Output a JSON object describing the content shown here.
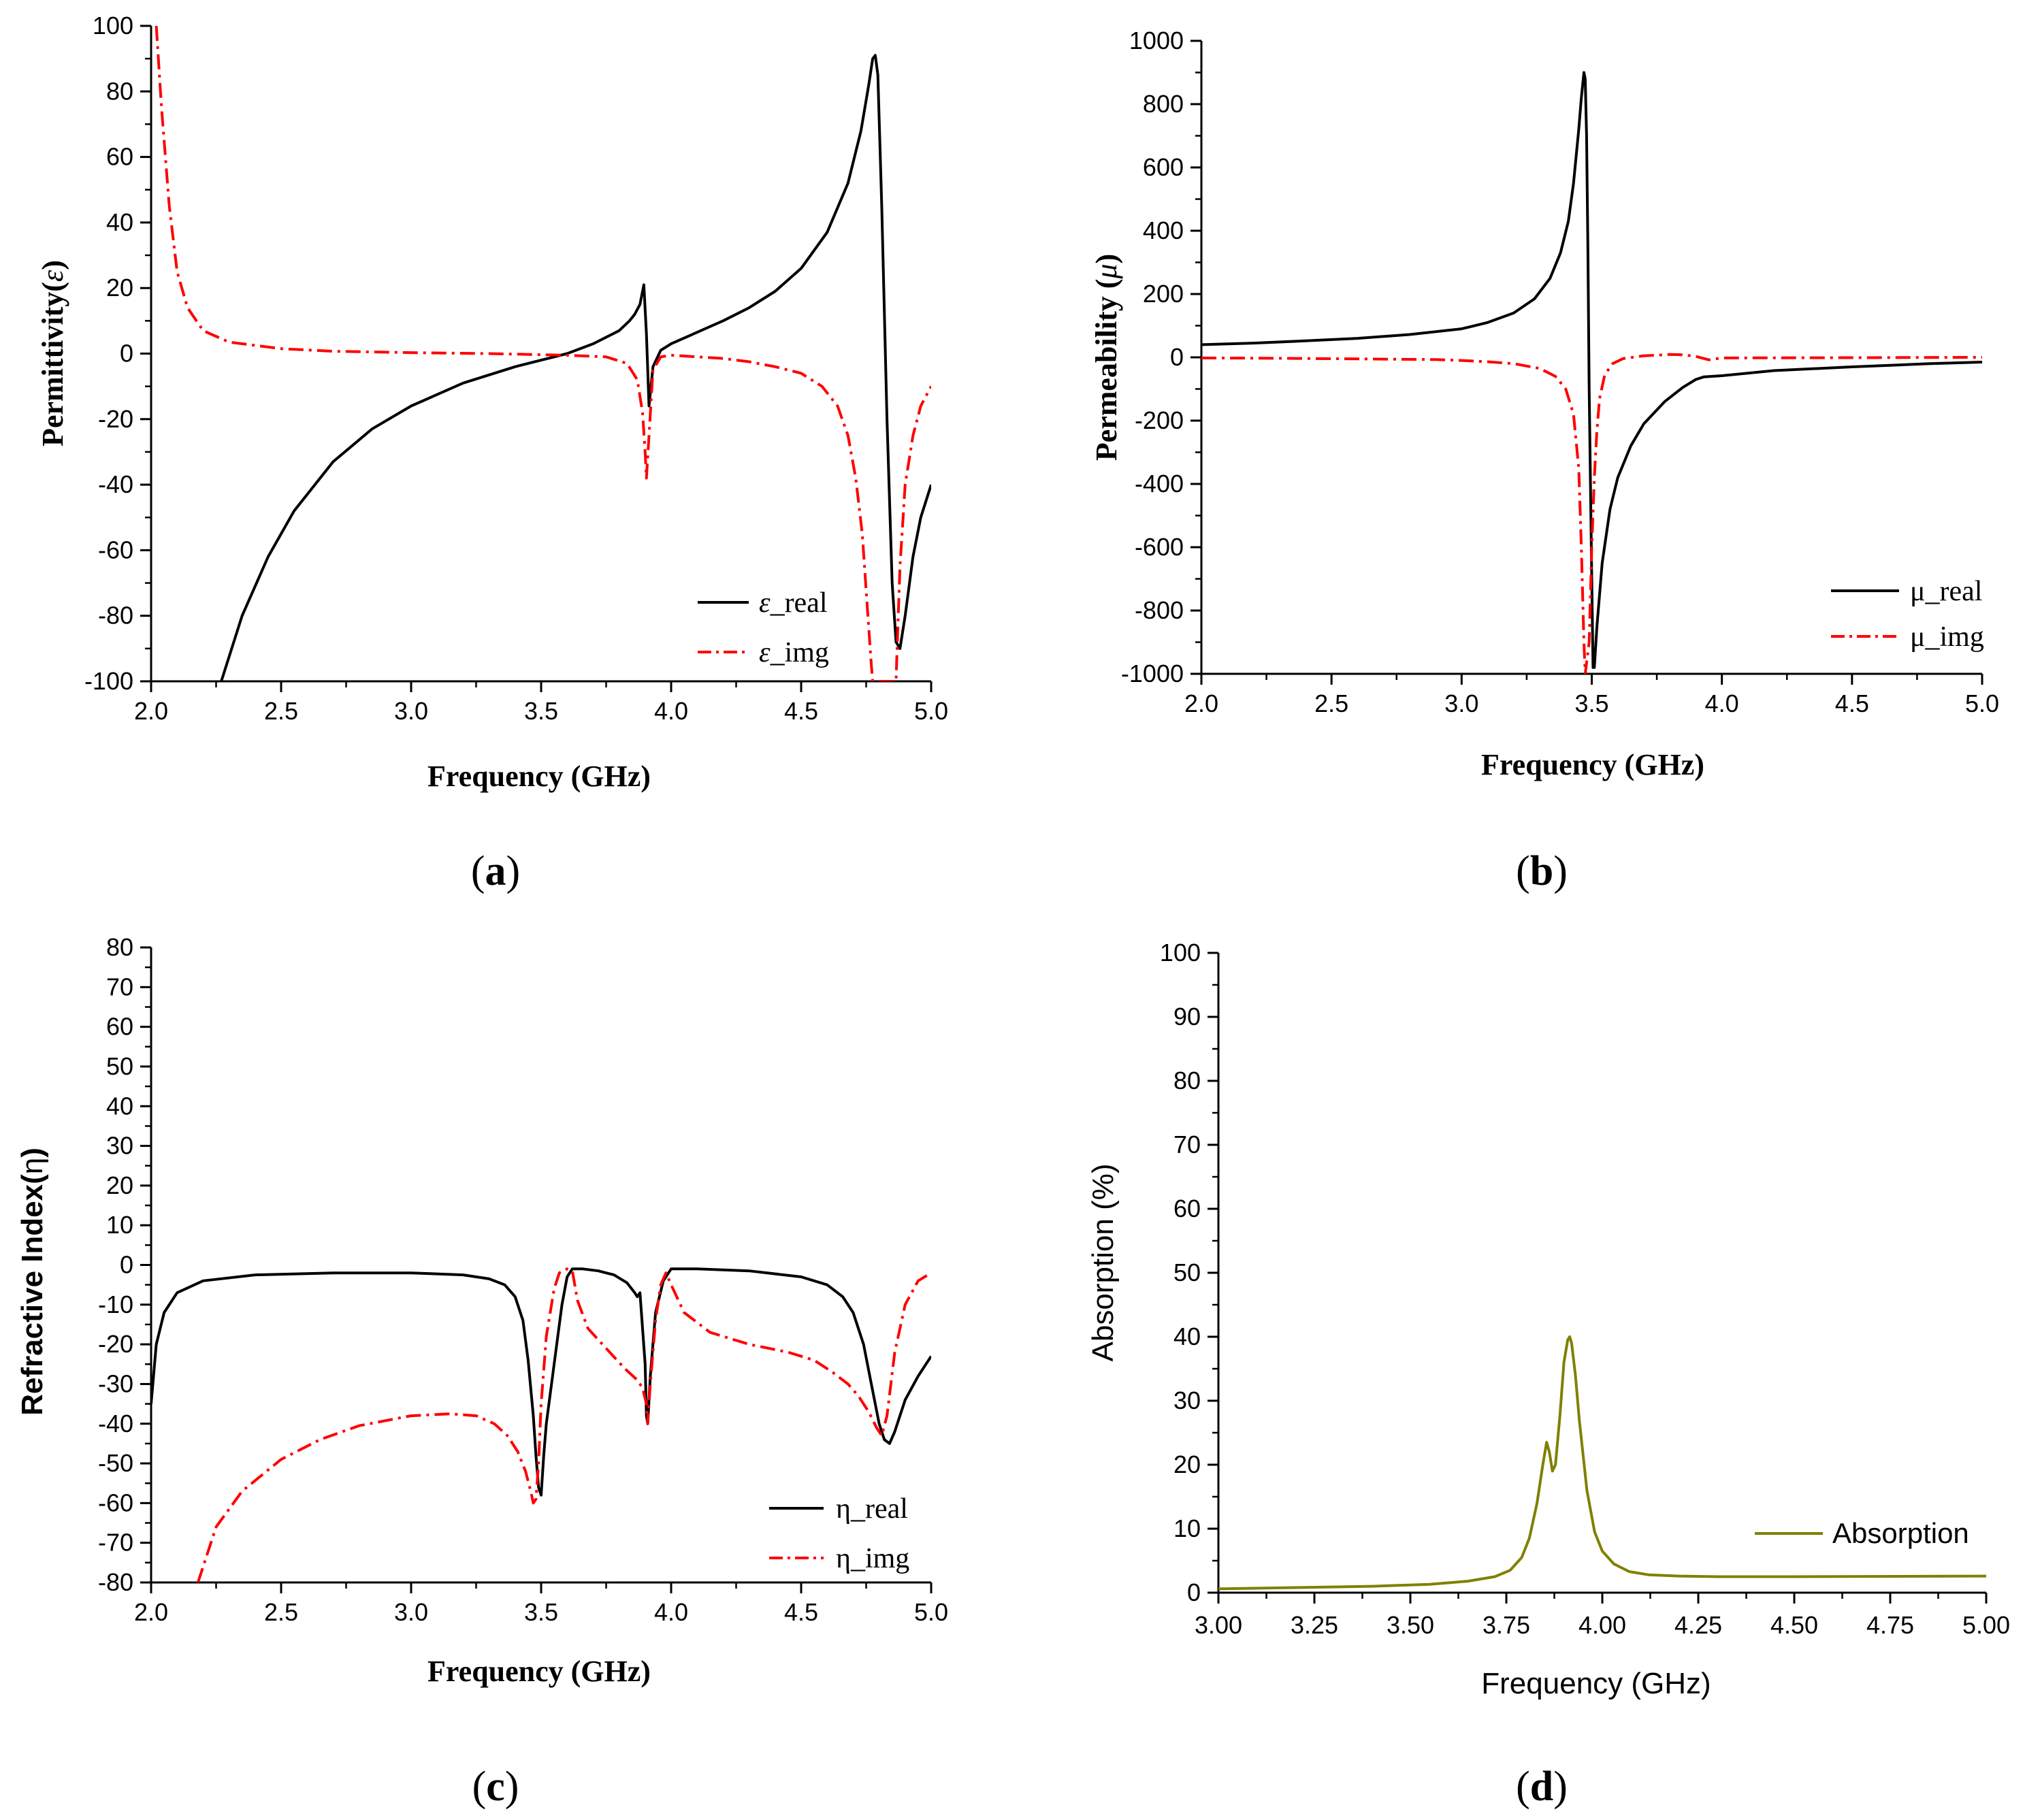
{
  "colors": {
    "real": "#000000",
    "img": "#ff0000",
    "absorption": "#808000",
    "axis": "#000000"
  },
  "captions": [
    "(a)",
    "(b)",
    "(c)",
    "(d)"
  ],
  "caption_parts": [
    {
      "open": "(",
      "letter": "a",
      "close": ")"
    },
    {
      "open": "(",
      "letter": "b",
      "close": ")"
    },
    {
      "open": "(",
      "letter": "c",
      "close": ")"
    },
    {
      "open": "(",
      "letter": "d",
      "close": ")"
    }
  ],
  "chart_data": [
    {
      "id": "a",
      "type": "line",
      "xlabel": "Frequency (GHz)",
      "ylabel": "Permittivity(ε)",
      "ylabel_parts": {
        "text": "Permittivity(",
        "symbol": "ε",
        "close": ")"
      },
      "xlim": [
        2.0,
        5.0
      ],
      "ylim": [
        -100,
        100
      ],
      "xticks": [
        2.0,
        2.5,
        3.0,
        3.5,
        4.0,
        4.5,
        5.0
      ],
      "xtick_labels": [
        "2.0",
        "2.5",
        "3.0",
        "3.5",
        "4.0",
        "4.5",
        "5.0"
      ],
      "yticks": [
        -100,
        -80,
        -60,
        -40,
        -20,
        0,
        20,
        40,
        60,
        80,
        100
      ],
      "ytick_labels": [
        "-100",
        "-80",
        "-60",
        "-40",
        "-20",
        "0",
        "20",
        "40",
        "60",
        "80",
        "100"
      ],
      "legend_position": "bottom-right",
      "series": [
        {
          "name": "ε_real",
          "legend_parts": {
            "symbol": "ε",
            "text": "_real"
          },
          "style": "solid",
          "x": [
            2.27,
            2.35,
            2.45,
            2.55,
            2.7,
            2.85,
            3.0,
            3.2,
            3.4,
            3.6,
            3.7,
            3.8,
            3.84,
            3.86,
            3.88,
            3.895,
            3.905,
            3.915,
            3.93,
            3.96,
            4.0,
            4.1,
            4.2,
            4.3,
            4.4,
            4.5,
            4.6,
            4.68,
            4.73,
            4.76,
            4.775,
            4.785,
            4.795,
            4.81,
            4.83,
            4.85,
            4.865,
            4.88,
            4.9,
            4.93,
            4.96,
            5.0
          ],
          "y": [
            -100,
            -80,
            -62,
            -48,
            -33,
            -23,
            -16,
            -9,
            -4,
            0,
            3,
            7,
            10,
            12,
            15,
            21,
            6,
            -16,
            -4,
            1,
            3,
            6.5,
            10,
            14,
            19,
            26,
            37,
            52,
            68,
            82,
            90,
            91,
            85,
            45,
            -20,
            -70,
            -88,
            -90,
            -80,
            -62,
            -50,
            -40
          ]
        },
        {
          "name": "ε_img",
          "legend_parts": {
            "symbol": "ε",
            "text": "_img"
          },
          "style": "dashdot",
          "x": [
            2.02,
            2.04,
            2.07,
            2.1,
            2.14,
            2.2,
            2.3,
            2.5,
            2.7,
            3.0,
            3.3,
            3.6,
            3.75,
            3.83,
            3.87,
            3.89,
            3.9,
            3.905,
            3.915,
            3.93,
            3.96,
            4.0,
            4.1,
            4.2,
            4.3,
            4.4,
            4.5,
            4.58,
            4.64,
            4.68,
            4.71,
            4.735,
            4.755,
            4.77,
            4.775,
            4.865,
            4.87,
            4.88,
            4.9,
            4.93,
            4.96,
            5.0
          ],
          "y": [
            100,
            75,
            45,
            25,
            14,
            7,
            3.5,
            1.5,
            0.7,
            0.3,
            0,
            -0.5,
            -1,
            -3,
            -8,
            -18,
            -30,
            -38,
            -25,
            -5,
            -1,
            -0.5,
            -1,
            -1.5,
            -2.5,
            -4,
            -6,
            -10,
            -16,
            -25,
            -38,
            -55,
            -78,
            -95,
            -100,
            -100,
            -88,
            -65,
            -40,
            -25,
            -16,
            -10
          ]
        }
      ]
    },
    {
      "id": "b",
      "type": "line",
      "xlabel": "Frequency (GHz)",
      "ylabel": "Permeability (μ)",
      "ylabel_parts": {
        "text": "Permeability (",
        "symbol": "μ",
        "close": ")"
      },
      "xlim": [
        2.0,
        5.0
      ],
      "ylim": [
        -1000,
        1000
      ],
      "xticks": [
        2.0,
        2.5,
        3.0,
        3.5,
        4.0,
        4.5,
        5.0
      ],
      "xtick_labels": [
        "2.0",
        "2.5",
        "3.0",
        "3.5",
        "4.0",
        "4.5",
        "5.0"
      ],
      "yticks": [
        -1000,
        -800,
        -600,
        -400,
        -200,
        0,
        200,
        400,
        600,
        800,
        1000
      ],
      "ytick_labels": [
        "-1000",
        "-800",
        "-600",
        "-400",
        "-200",
        "0",
        "200",
        "400",
        "600",
        "800",
        "1000"
      ],
      "legend_position": "bottom-right",
      "series": [
        {
          "name": "μ_real",
          "style": "solid",
          "x": [
            2.0,
            2.2,
            2.4,
            2.6,
            2.8,
            3.0,
            3.1,
            3.2,
            3.28,
            3.34,
            3.38,
            3.41,
            3.43,
            3.45,
            3.46,
            3.47,
            3.475,
            3.48,
            3.485,
            3.49,
            3.5,
            3.505,
            3.51,
            3.52,
            3.54,
            3.57,
            3.6,
            3.65,
            3.7,
            3.78,
            3.85,
            3.9,
            3.93,
            4.0,
            4.2,
            4.5,
            4.8,
            5.0
          ],
          "y": [
            40,
            45,
            52,
            60,
            72,
            90,
            110,
            140,
            185,
            250,
            330,
            430,
            550,
            720,
            820,
            900,
            880,
            700,
            350,
            -100,
            -700,
            -980,
            -980,
            -850,
            -650,
            -480,
            -380,
            -280,
            -210,
            -140,
            -95,
            -70,
            -62,
            -58,
            -42,
            -30,
            -20,
            -15
          ]
        },
        {
          "name": "μ_img",
          "style": "dashdot",
          "x": [
            2.0,
            2.3,
            2.6,
            2.9,
            3.0,
            3.1,
            3.2,
            3.3,
            3.36,
            3.4,
            3.43,
            3.45,
            3.46,
            3.47,
            3.475,
            3.49,
            3.5,
            3.51,
            3.52,
            3.53,
            3.55,
            3.58,
            3.62,
            3.7,
            3.8,
            3.85,
            3.9,
            3.95,
            4.0,
            4.5,
            5.0
          ],
          "y": [
            -2,
            -3,
            -5,
            -7,
            -10,
            -14,
            -20,
            -35,
            -60,
            -100,
            -180,
            -350,
            -600,
            -900,
            -1000,
            -900,
            -600,
            -380,
            -230,
            -130,
            -55,
            -20,
            -4,
            5,
            9,
            8,
            3,
            -8,
            -2,
            -1,
            0
          ]
        }
      ]
    },
    {
      "id": "c",
      "type": "line",
      "xlabel": "Frequency (GHz)",
      "ylabel": "Refractive Index(η)",
      "ylabel_parts": {
        "text": "Refractive Index(",
        "symbol": "η",
        "close": ")"
      },
      "xlim": [
        2.0,
        5.0
      ],
      "ylim": [
        -80,
        80
      ],
      "xticks": [
        2.0,
        2.5,
        3.0,
        3.5,
        4.0,
        4.5,
        5.0
      ],
      "xtick_labels": [
        "2.0",
        "2.5",
        "3.0",
        "3.5",
        "4.0",
        "4.5",
        "5.0"
      ],
      "yticks": [
        -80,
        -70,
        -60,
        -50,
        -40,
        -30,
        -20,
        -10,
        0,
        10,
        20,
        30,
        40,
        50,
        60,
        70,
        80
      ],
      "ytick_labels": [
        "-80",
        "-70",
        "-60",
        "-50",
        "-40",
        "-30",
        "-20",
        "-10",
        "0",
        "10",
        "20",
        "30",
        "40",
        "50",
        "60",
        "70",
        "80"
      ],
      "legend_position": "bottom-right",
      "series": [
        {
          "name": "η_real",
          "style": "solid",
          "x": [
            2.0,
            2.02,
            2.05,
            2.1,
            2.2,
            2.4,
            2.7,
            3.0,
            3.2,
            3.3,
            3.36,
            3.4,
            3.43,
            3.45,
            3.47,
            3.48,
            3.49,
            3.5,
            3.51,
            3.52,
            3.55,
            3.58,
            3.6,
            3.62,
            3.66,
            3.72,
            3.78,
            3.83,
            3.86,
            3.87,
            3.88,
            3.9,
            3.905,
            3.91,
            3.92,
            3.94,
            3.97,
            4.0,
            4.05,
            4.1,
            4.3,
            4.5,
            4.6,
            4.66,
            4.7,
            4.74,
            4.77,
            4.8,
            4.82,
            4.84,
            4.86,
            4.9,
            4.95,
            5.0
          ],
          "y": [
            -35,
            -20,
            -12,
            -7,
            -4,
            -2.5,
            -2,
            -2,
            -2.5,
            -3.5,
            -5,
            -8,
            -14,
            -24,
            -38,
            -48,
            -56,
            -58,
            -48,
            -40,
            -25,
            -10,
            -3,
            -1,
            -1,
            -1.5,
            -2.5,
            -4.5,
            -7,
            -8,
            -7,
            -25,
            -38,
            -40,
            -28,
            -12,
            -4,
            -1,
            -1,
            -1,
            -1.5,
            -3,
            -5,
            -8,
            -12,
            -20,
            -30,
            -40,
            -44,
            -45,
            -42,
            -34,
            -28,
            -23
          ]
        },
        {
          "name": "η_img",
          "style": "dashdot",
          "x": [
            2.18,
            2.25,
            2.35,
            2.5,
            2.65,
            2.8,
            3.0,
            3.15,
            3.25,
            3.32,
            3.37,
            3.41,
            3.44,
            3.46,
            3.47,
            3.48,
            3.49,
            3.5,
            3.52,
            3.55,
            3.57,
            3.6,
            3.62,
            3.64,
            3.68,
            3.75,
            3.82,
            3.87,
            3.89,
            3.905,
            3.91,
            3.92,
            3.94,
            3.96,
            3.98,
            4.0,
            4.05,
            4.15,
            4.3,
            4.45,
            4.55,
            4.62,
            4.68,
            4.72,
            4.76,
            4.79,
            4.81,
            4.83,
            4.86,
            4.9,
            4.95,
            5.0
          ],
          "y": [
            -80,
            -66,
            -57,
            -49,
            -44,
            -40.5,
            -38,
            -37.5,
            -38,
            -40,
            -43,
            -47,
            -52,
            -57,
            -60,
            -59,
            -50,
            -35,
            -18,
            -6,
            -2,
            -1,
            -1.5,
            -9,
            -16,
            -21,
            -26,
            -29,
            -31,
            -35,
            -40,
            -30,
            -14,
            -5,
            -2,
            -5,
            -12,
            -17,
            -20,
            -22,
            -24,
            -27,
            -30,
            -33,
            -37,
            -41,
            -43,
            -38,
            -22,
            -10,
            -4,
            -2
          ]
        }
      ]
    },
    {
      "id": "d",
      "type": "line",
      "xlabel": "Frequency (GHz)",
      "ylabel": "Absorption (%)",
      "xlim": [
        3.0,
        5.0
      ],
      "ylim": [
        0,
        100
      ],
      "xticks": [
        3.0,
        3.25,
        3.5,
        3.75,
        4.0,
        4.25,
        4.5,
        4.75,
        5.0
      ],
      "xtick_labels": [
        "3.00",
        "3.25",
        "3.50",
        "3.75",
        "4.00",
        "4.25",
        "4.50",
        "4.75",
        "5.00"
      ],
      "yticks": [
        0,
        10,
        20,
        30,
        40,
        50,
        60,
        70,
        80,
        90,
        100
      ],
      "ytick_labels": [
        "0",
        "10",
        "20",
        "30",
        "40",
        "50",
        "60",
        "70",
        "80",
        "90",
        "100"
      ],
      "legend_position": "bottom-right",
      "series": [
        {
          "name": "Absorption",
          "style": "solid",
          "x": [
            3.0,
            3.2,
            3.4,
            3.55,
            3.65,
            3.72,
            3.76,
            3.79,
            3.81,
            3.83,
            3.845,
            3.855,
            3.862,
            3.87,
            3.878,
            3.89,
            3.9,
            3.91,
            3.915,
            3.92,
            3.93,
            3.94,
            3.96,
            3.98,
            4.0,
            4.03,
            4.07,
            4.12,
            4.2,
            4.3,
            4.5,
            5.0
          ],
          "y": [
            0.6,
            0.8,
            1.0,
            1.3,
            1.8,
            2.5,
            3.5,
            5.5,
            8.5,
            14,
            20,
            23.5,
            22,
            19,
            20,
            28,
            36,
            39.5,
            40,
            39,
            34,
            27,
            16,
            9.5,
            6.5,
            4.5,
            3.3,
            2.8,
            2.6,
            2.5,
            2.5,
            2.6
          ]
        }
      ]
    }
  ]
}
